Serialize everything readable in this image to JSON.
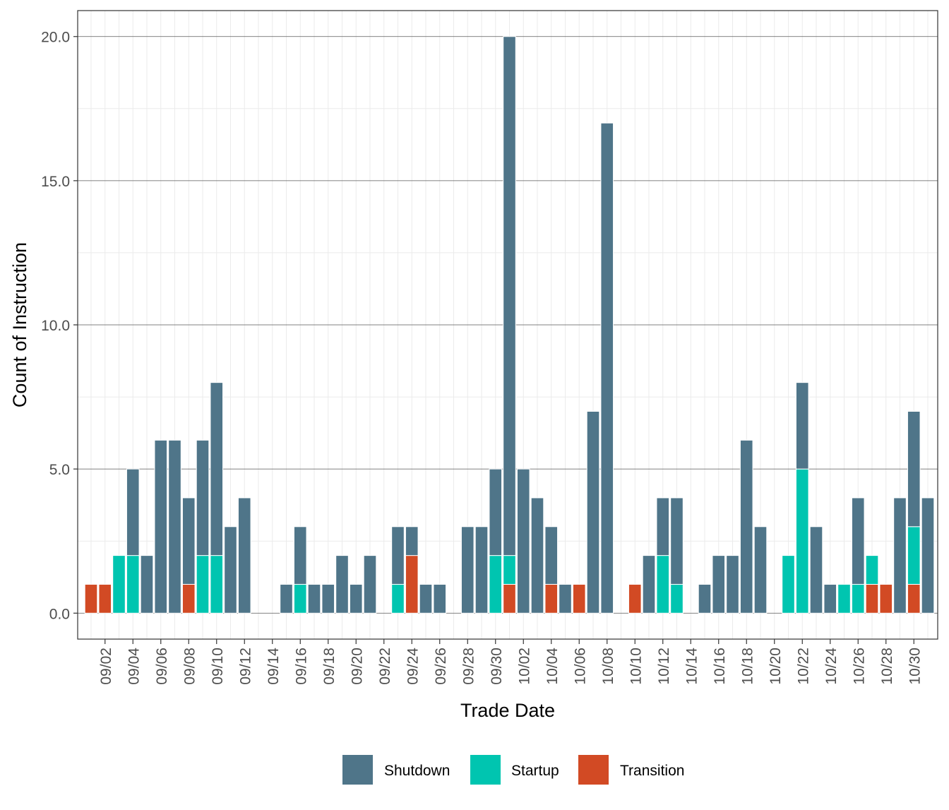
{
  "chart_data": {
    "type": "bar",
    "stacked": true,
    "xlabel": "Trade Date",
    "ylabel": "Count of Instruction",
    "ylim": [
      -0.9,
      20.9
    ],
    "yticks": [
      "0.0",
      "5.0",
      "10.0",
      "15.0",
      "20.0"
    ],
    "grid": true,
    "legend_position": "bottom",
    "categories": [
      "09/01",
      "09/02",
      "09/03",
      "09/04",
      "09/05",
      "09/06",
      "09/07",
      "09/08",
      "09/09",
      "09/10",
      "09/11",
      "09/12",
      "09/13",
      "09/14",
      "09/15",
      "09/16",
      "09/17",
      "09/18",
      "09/19",
      "09/20",
      "09/21",
      "09/22",
      "09/23",
      "09/24",
      "09/25",
      "09/26",
      "09/27",
      "09/28",
      "09/29",
      "09/30",
      "10/01",
      "10/02",
      "10/03",
      "10/04",
      "10/05",
      "10/06",
      "10/07",
      "10/08",
      "10/09",
      "10/10",
      "10/11",
      "10/12",
      "10/13",
      "10/14",
      "10/15",
      "10/16",
      "10/17",
      "10/18",
      "10/19",
      "10/20",
      "10/21",
      "10/22",
      "10/23",
      "10/24",
      "10/25",
      "10/26",
      "10/27",
      "10/28",
      "10/29",
      "10/30",
      "10/31"
    ],
    "xtick_labels": [
      "09/02",
      "09/04",
      "09/06",
      "09/08",
      "09/10",
      "09/12",
      "09/14",
      "09/16",
      "09/18",
      "09/20",
      "09/22",
      "09/24",
      "09/26",
      "09/28",
      "09/30",
      "10/02",
      "10/04",
      "10/06",
      "10/08",
      "10/10",
      "10/12",
      "10/14",
      "10/16",
      "10/18",
      "10/20",
      "10/22",
      "10/24",
      "10/26",
      "10/28",
      "10/30"
    ],
    "series": [
      {
        "name": "Transition",
        "color": "#D24A24",
        "values": [
          1,
          1,
          0,
          0,
          0,
          0,
          0,
          1,
          0,
          0,
          0,
          0,
          0,
          0,
          0,
          0,
          0,
          0,
          0,
          0,
          0,
          0,
          0,
          2,
          0,
          0,
          0,
          0,
          0,
          0,
          1,
          0,
          0,
          1,
          0,
          1,
          0,
          0,
          0,
          1,
          0,
          0,
          0,
          0,
          0,
          0,
          0,
          0,
          0,
          0,
          0,
          0,
          0,
          0,
          0,
          0,
          1,
          1,
          0,
          1,
          0
        ]
      },
      {
        "name": "Startup",
        "color": "#00C5B0",
        "values": [
          0,
          0,
          2,
          2,
          0,
          0,
          0,
          0,
          2,
          2,
          0,
          0,
          0,
          0,
          0,
          1,
          0,
          0,
          0,
          0,
          0,
          0,
          1,
          0,
          0,
          0,
          0,
          0,
          0,
          2,
          1,
          0,
          0,
          0,
          0,
          0,
          0,
          0,
          0,
          0,
          0,
          2,
          1,
          0,
          0,
          0,
          0,
          0,
          0,
          0,
          2,
          5,
          0,
          0,
          1,
          1,
          1,
          0,
          0,
          2,
          0
        ]
      },
      {
        "name": "Shutdown",
        "color": "#4F7589",
        "values": [
          0,
          0,
          0,
          3,
          2,
          6,
          6,
          3,
          4,
          6,
          3,
          4,
          0,
          0,
          1,
          2,
          1,
          1,
          2,
          1,
          2,
          0,
          2,
          1,
          1,
          1,
          0,
          3,
          3,
          3,
          18,
          5,
          4,
          2,
          1,
          0,
          7,
          17,
          0,
          0,
          2,
          2,
          3,
          0,
          1,
          2,
          2,
          6,
          3,
          0,
          0,
          3,
          3,
          1,
          0,
          3,
          0,
          0,
          4,
          4,
          4
        ]
      }
    ]
  },
  "legend": [
    {
      "label": "Shutdown",
      "color": "#4F7589"
    },
    {
      "label": "Startup",
      "color": "#00C5B0"
    },
    {
      "label": "Transition",
      "color": "#D24A24"
    }
  ]
}
